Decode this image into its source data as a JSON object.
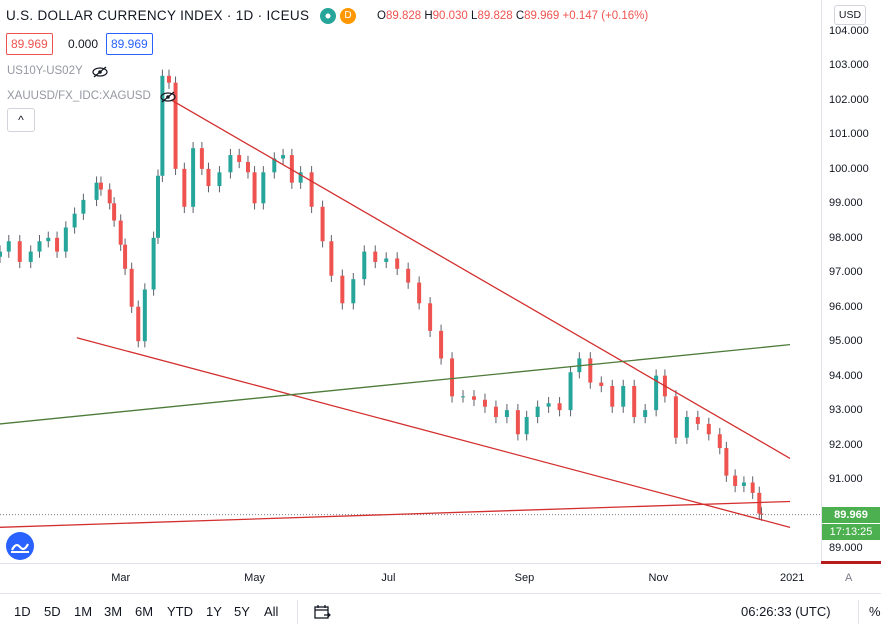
{
  "header": {
    "title": "U.S. DOLLAR CURRENCY INDEX · 1D · ICEUS",
    "d_badge": "D",
    "ohlc": {
      "o_label": "O",
      "o": "89.828",
      "h_label": "H",
      "h": "90.030",
      "l_label": "L",
      "l": "89.828",
      "c_label": "C",
      "c": "89.969",
      "change": "+0.147 (+0.16%)"
    },
    "bid": "89.969",
    "spread": "0.000",
    "ask": "89.969"
  },
  "studies": [
    "US10Y-US02Y",
    "XAUUSD/FX_IDC:XAGUSD"
  ],
  "collapse_label": "^",
  "currency_button": "USD",
  "last_price": "89.969",
  "countdown": "17:13:25",
  "scale_mode": "A",
  "bottom_bar": {
    "timeframes": [
      "1D",
      "5D",
      "1M",
      "3M",
      "6M",
      "YTD",
      "1Y",
      "5Y",
      "All"
    ],
    "time": "06:26:33 (UTC)",
    "percent": "%"
  },
  "colors": {
    "up": "#26a69a",
    "down": "#ef5350",
    "trend_red": "#d32f2f",
    "trend_green": "#4e7b3a",
    "price_tag": "#4caf50"
  },
  "chart_data": {
    "type": "candlestick",
    "title": "U.S. DOLLAR CURRENCY INDEX · 1D · ICEUS",
    "y_ticks": [
      "104.000",
      "103.000",
      "102.000",
      "101.000",
      "100.000",
      "99.000",
      "98.000",
      "97.000",
      "96.000",
      "95.000",
      "94.000",
      "93.000",
      "92.000",
      "91.000",
      "90.000",
      "89.000"
    ],
    "x_ticks": [
      "Mar",
      "May",
      "Jul",
      "Sep",
      "Nov",
      "2021"
    ],
    "ylim": [
      88.6,
      104.4
    ],
    "x_dates": [
      "2020-01-06",
      "2020-12-31"
    ],
    "closes": [
      {
        "d": "2020-01-06",
        "c": 97.6
      },
      {
        "d": "2020-01-10",
        "c": 97.9
      },
      {
        "d": "2020-01-15",
        "c": 97.3
      },
      {
        "d": "2020-01-20",
        "c": 97.6
      },
      {
        "d": "2020-01-24",
        "c": 97.9
      },
      {
        "d": "2020-01-28",
        "c": 98.0
      },
      {
        "d": "2020-02-01",
        "c": 97.6
      },
      {
        "d": "2020-02-05",
        "c": 98.3
      },
      {
        "d": "2020-02-09",
        "c": 98.7
      },
      {
        "d": "2020-02-13",
        "c": 99.1
      },
      {
        "d": "2020-02-19",
        "c": 99.6
      },
      {
        "d": "2020-02-21",
        "c": 99.4
      },
      {
        "d": "2020-02-25",
        "c": 99.0
      },
      {
        "d": "2020-02-27",
        "c": 98.5
      },
      {
        "d": "2020-03-01",
        "c": 97.8
      },
      {
        "d": "2020-03-03",
        "c": 97.1
      },
      {
        "d": "2020-03-06",
        "c": 96.0
      },
      {
        "d": "2020-03-09",
        "c": 95.0
      },
      {
        "d": "2020-03-12",
        "c": 96.5
      },
      {
        "d": "2020-03-16",
        "c": 98.0
      },
      {
        "d": "2020-03-18",
        "c": 99.8
      },
      {
        "d": "2020-03-20",
        "c": 102.7
      },
      {
        "d": "2020-03-23",
        "c": 102.5
      },
      {
        "d": "2020-03-26",
        "c": 100.0
      },
      {
        "d": "2020-03-30",
        "c": 98.9
      },
      {
        "d": "2020-04-03",
        "c": 100.6
      },
      {
        "d": "2020-04-07",
        "c": 100.0
      },
      {
        "d": "2020-04-10",
        "c": 99.5
      },
      {
        "d": "2020-04-15",
        "c": 99.9
      },
      {
        "d": "2020-04-20",
        "c": 100.4
      },
      {
        "d": "2020-04-24",
        "c": 100.2
      },
      {
        "d": "2020-04-28",
        "c": 99.9
      },
      {
        "d": "2020-05-01",
        "c": 99.0
      },
      {
        "d": "2020-05-05",
        "c": 99.9
      },
      {
        "d": "2020-05-10",
        "c": 100.3
      },
      {
        "d": "2020-05-14",
        "c": 100.4
      },
      {
        "d": "2020-05-18",
        "c": 99.6
      },
      {
        "d": "2020-05-22",
        "c": 99.9
      },
      {
        "d": "2020-05-27",
        "c": 98.9
      },
      {
        "d": "2020-06-01",
        "c": 97.9
      },
      {
        "d": "2020-06-05",
        "c": 96.9
      },
      {
        "d": "2020-06-10",
        "c": 96.1
      },
      {
        "d": "2020-06-15",
        "c": 96.8
      },
      {
        "d": "2020-06-20",
        "c": 97.6
      },
      {
        "d": "2020-06-25",
        "c": 97.3
      },
      {
        "d": "2020-06-30",
        "c": 97.4
      },
      {
        "d": "2020-07-05",
        "c": 97.1
      },
      {
        "d": "2020-07-10",
        "c": 96.7
      },
      {
        "d": "2020-07-15",
        "c": 96.1
      },
      {
        "d": "2020-07-20",
        "c": 95.3
      },
      {
        "d": "2020-07-25",
        "c": 94.5
      },
      {
        "d": "2020-07-30",
        "c": 93.4
      },
      {
        "d": "2020-08-04",
        "c": 93.4
      },
      {
        "d": "2020-08-09",
        "c": 93.3
      },
      {
        "d": "2020-08-14",
        "c": 93.1
      },
      {
        "d": "2020-08-19",
        "c": 92.8
      },
      {
        "d": "2020-08-24",
        "c": 93.0
      },
      {
        "d": "2020-08-29",
        "c": 92.3
      },
      {
        "d": "2020-09-02",
        "c": 92.8
      },
      {
        "d": "2020-09-07",
        "c": 93.1
      },
      {
        "d": "2020-09-12",
        "c": 93.2
      },
      {
        "d": "2020-09-17",
        "c": 93.0
      },
      {
        "d": "2020-09-22",
        "c": 94.1
      },
      {
        "d": "2020-09-26",
        "c": 94.5
      },
      {
        "d": "2020-10-01",
        "c": 93.8
      },
      {
        "d": "2020-10-06",
        "c": 93.7
      },
      {
        "d": "2020-10-11",
        "c": 93.1
      },
      {
        "d": "2020-10-16",
        "c": 93.7
      },
      {
        "d": "2020-10-21",
        "c": 92.8
      },
      {
        "d": "2020-10-26",
        "c": 93.0
      },
      {
        "d": "2020-10-31",
        "c": 94.0
      },
      {
        "d": "2020-11-04",
        "c": 93.4
      },
      {
        "d": "2020-11-09",
        "c": 92.2
      },
      {
        "d": "2020-11-14",
        "c": 92.8
      },
      {
        "d": "2020-11-19",
        "c": 92.6
      },
      {
        "d": "2020-11-24",
        "c": 92.3
      },
      {
        "d": "2020-11-29",
        "c": 91.9
      },
      {
        "d": "2020-12-02",
        "c": 91.1
      },
      {
        "d": "2020-12-06",
        "c": 90.8
      },
      {
        "d": "2020-12-10",
        "c": 90.9
      },
      {
        "d": "2020-12-14",
        "c": 90.6
      },
      {
        "d": "2020-12-17",
        "c": 90.0
      },
      {
        "d": "2020-12-18",
        "c": 89.97
      }
    ],
    "trendlines": [
      {
        "color": "red",
        "from": {
          "d": "2020-03-24",
          "y": 102.0
        },
        "to": {
          "d": "2020-12-31",
          "y": 91.6
        }
      },
      {
        "color": "red",
        "from": {
          "d": "2020-02-10",
          "y": 95.1
        },
        "to": {
          "d": "2020-12-31",
          "y": 89.6
        }
      },
      {
        "color": "green",
        "from": {
          "d": "2020-01-06",
          "y": 92.6
        },
        "to": {
          "d": "2020-12-31",
          "y": 94.9
        }
      },
      {
        "color": "red",
        "from": {
          "d": "2020-01-06",
          "y": 89.6
        },
        "to": {
          "d": "2020-12-31",
          "y": 90.35
        }
      }
    ],
    "last_price_line": 89.969,
    "legend": "top-left",
    "grid": false
  }
}
